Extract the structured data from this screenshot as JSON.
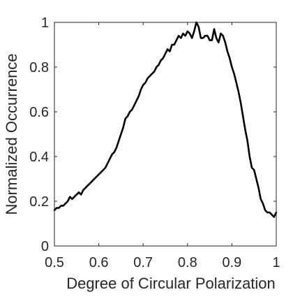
{
  "chart_data": {
    "type": "line",
    "title": "",
    "xlabel": "Degree of Circular Polarization",
    "ylabel": "Normalized Occurrence",
    "xlim": [
      0.5,
      1.0
    ],
    "ylim": [
      0,
      1
    ],
    "xticks": [
      0.5,
      0.6,
      0.7,
      0.8,
      0.9,
      1
    ],
    "xtick_labels": [
      "0.5",
      "0.6",
      "0.7",
      "0.8",
      "0.9",
      "1"
    ],
    "yticks": [
      0,
      0.2,
      0.4,
      0.6,
      0.8,
      1
    ],
    "ytick_labels": [
      "0",
      "0.2",
      "0.4",
      "0.6",
      "0.8",
      "1"
    ],
    "grid": false,
    "box": true,
    "line_color": "#000000",
    "series": [
      {
        "x": [
          0.5,
          0.505,
          0.51,
          0.515,
          0.52,
          0.525,
          0.53,
          0.535,
          0.54,
          0.545,
          0.55,
          0.555,
          0.56,
          0.565,
          0.57,
          0.575,
          0.58,
          0.585,
          0.59,
          0.595,
          0.6,
          0.605,
          0.61,
          0.615,
          0.62,
          0.625,
          0.63,
          0.635,
          0.64,
          0.645,
          0.65,
          0.655,
          0.66,
          0.665,
          0.67,
          0.675,
          0.68,
          0.685,
          0.69,
          0.695,
          0.7,
          0.705,
          0.71,
          0.715,
          0.72,
          0.725,
          0.73,
          0.735,
          0.74,
          0.745,
          0.75,
          0.755,
          0.76,
          0.765,
          0.77,
          0.775,
          0.78,
          0.785,
          0.79,
          0.795,
          0.8,
          0.805,
          0.81,
          0.815,
          0.82,
          0.825,
          0.83,
          0.835,
          0.84,
          0.845,
          0.85,
          0.855,
          0.86,
          0.865,
          0.87,
          0.875,
          0.88,
          0.885,
          0.89,
          0.895,
          0.9,
          0.905,
          0.91,
          0.915,
          0.92,
          0.925,
          0.93,
          0.935,
          0.94,
          0.945,
          0.95,
          0.955,
          0.96,
          0.965,
          0.97,
          0.975,
          0.98,
          0.985,
          0.99,
          0.995,
          1.0
        ],
        "y": [
          0.16,
          0.17,
          0.17,
          0.18,
          0.18,
          0.19,
          0.2,
          0.22,
          0.21,
          0.22,
          0.23,
          0.24,
          0.23,
          0.25,
          0.26,
          0.27,
          0.28,
          0.29,
          0.3,
          0.31,
          0.32,
          0.33,
          0.34,
          0.35,
          0.37,
          0.39,
          0.41,
          0.42,
          0.44,
          0.47,
          0.5,
          0.53,
          0.57,
          0.58,
          0.6,
          0.61,
          0.63,
          0.65,
          0.67,
          0.7,
          0.72,
          0.73,
          0.75,
          0.76,
          0.77,
          0.78,
          0.8,
          0.81,
          0.83,
          0.84,
          0.86,
          0.88,
          0.87,
          0.9,
          0.9,
          0.92,
          0.94,
          0.93,
          0.95,
          0.94,
          0.96,
          0.95,
          0.93,
          0.96,
          1.0,
          0.98,
          0.93,
          0.93,
          0.94,
          0.94,
          0.92,
          0.92,
          0.97,
          0.93,
          0.91,
          0.95,
          0.94,
          0.91,
          0.87,
          0.84,
          0.8,
          0.77,
          0.73,
          0.69,
          0.64,
          0.58,
          0.52,
          0.47,
          0.4,
          0.35,
          0.34,
          0.3,
          0.26,
          0.21,
          0.19,
          0.16,
          0.15,
          0.15,
          0.14,
          0.13,
          0.15
        ]
      }
    ]
  }
}
